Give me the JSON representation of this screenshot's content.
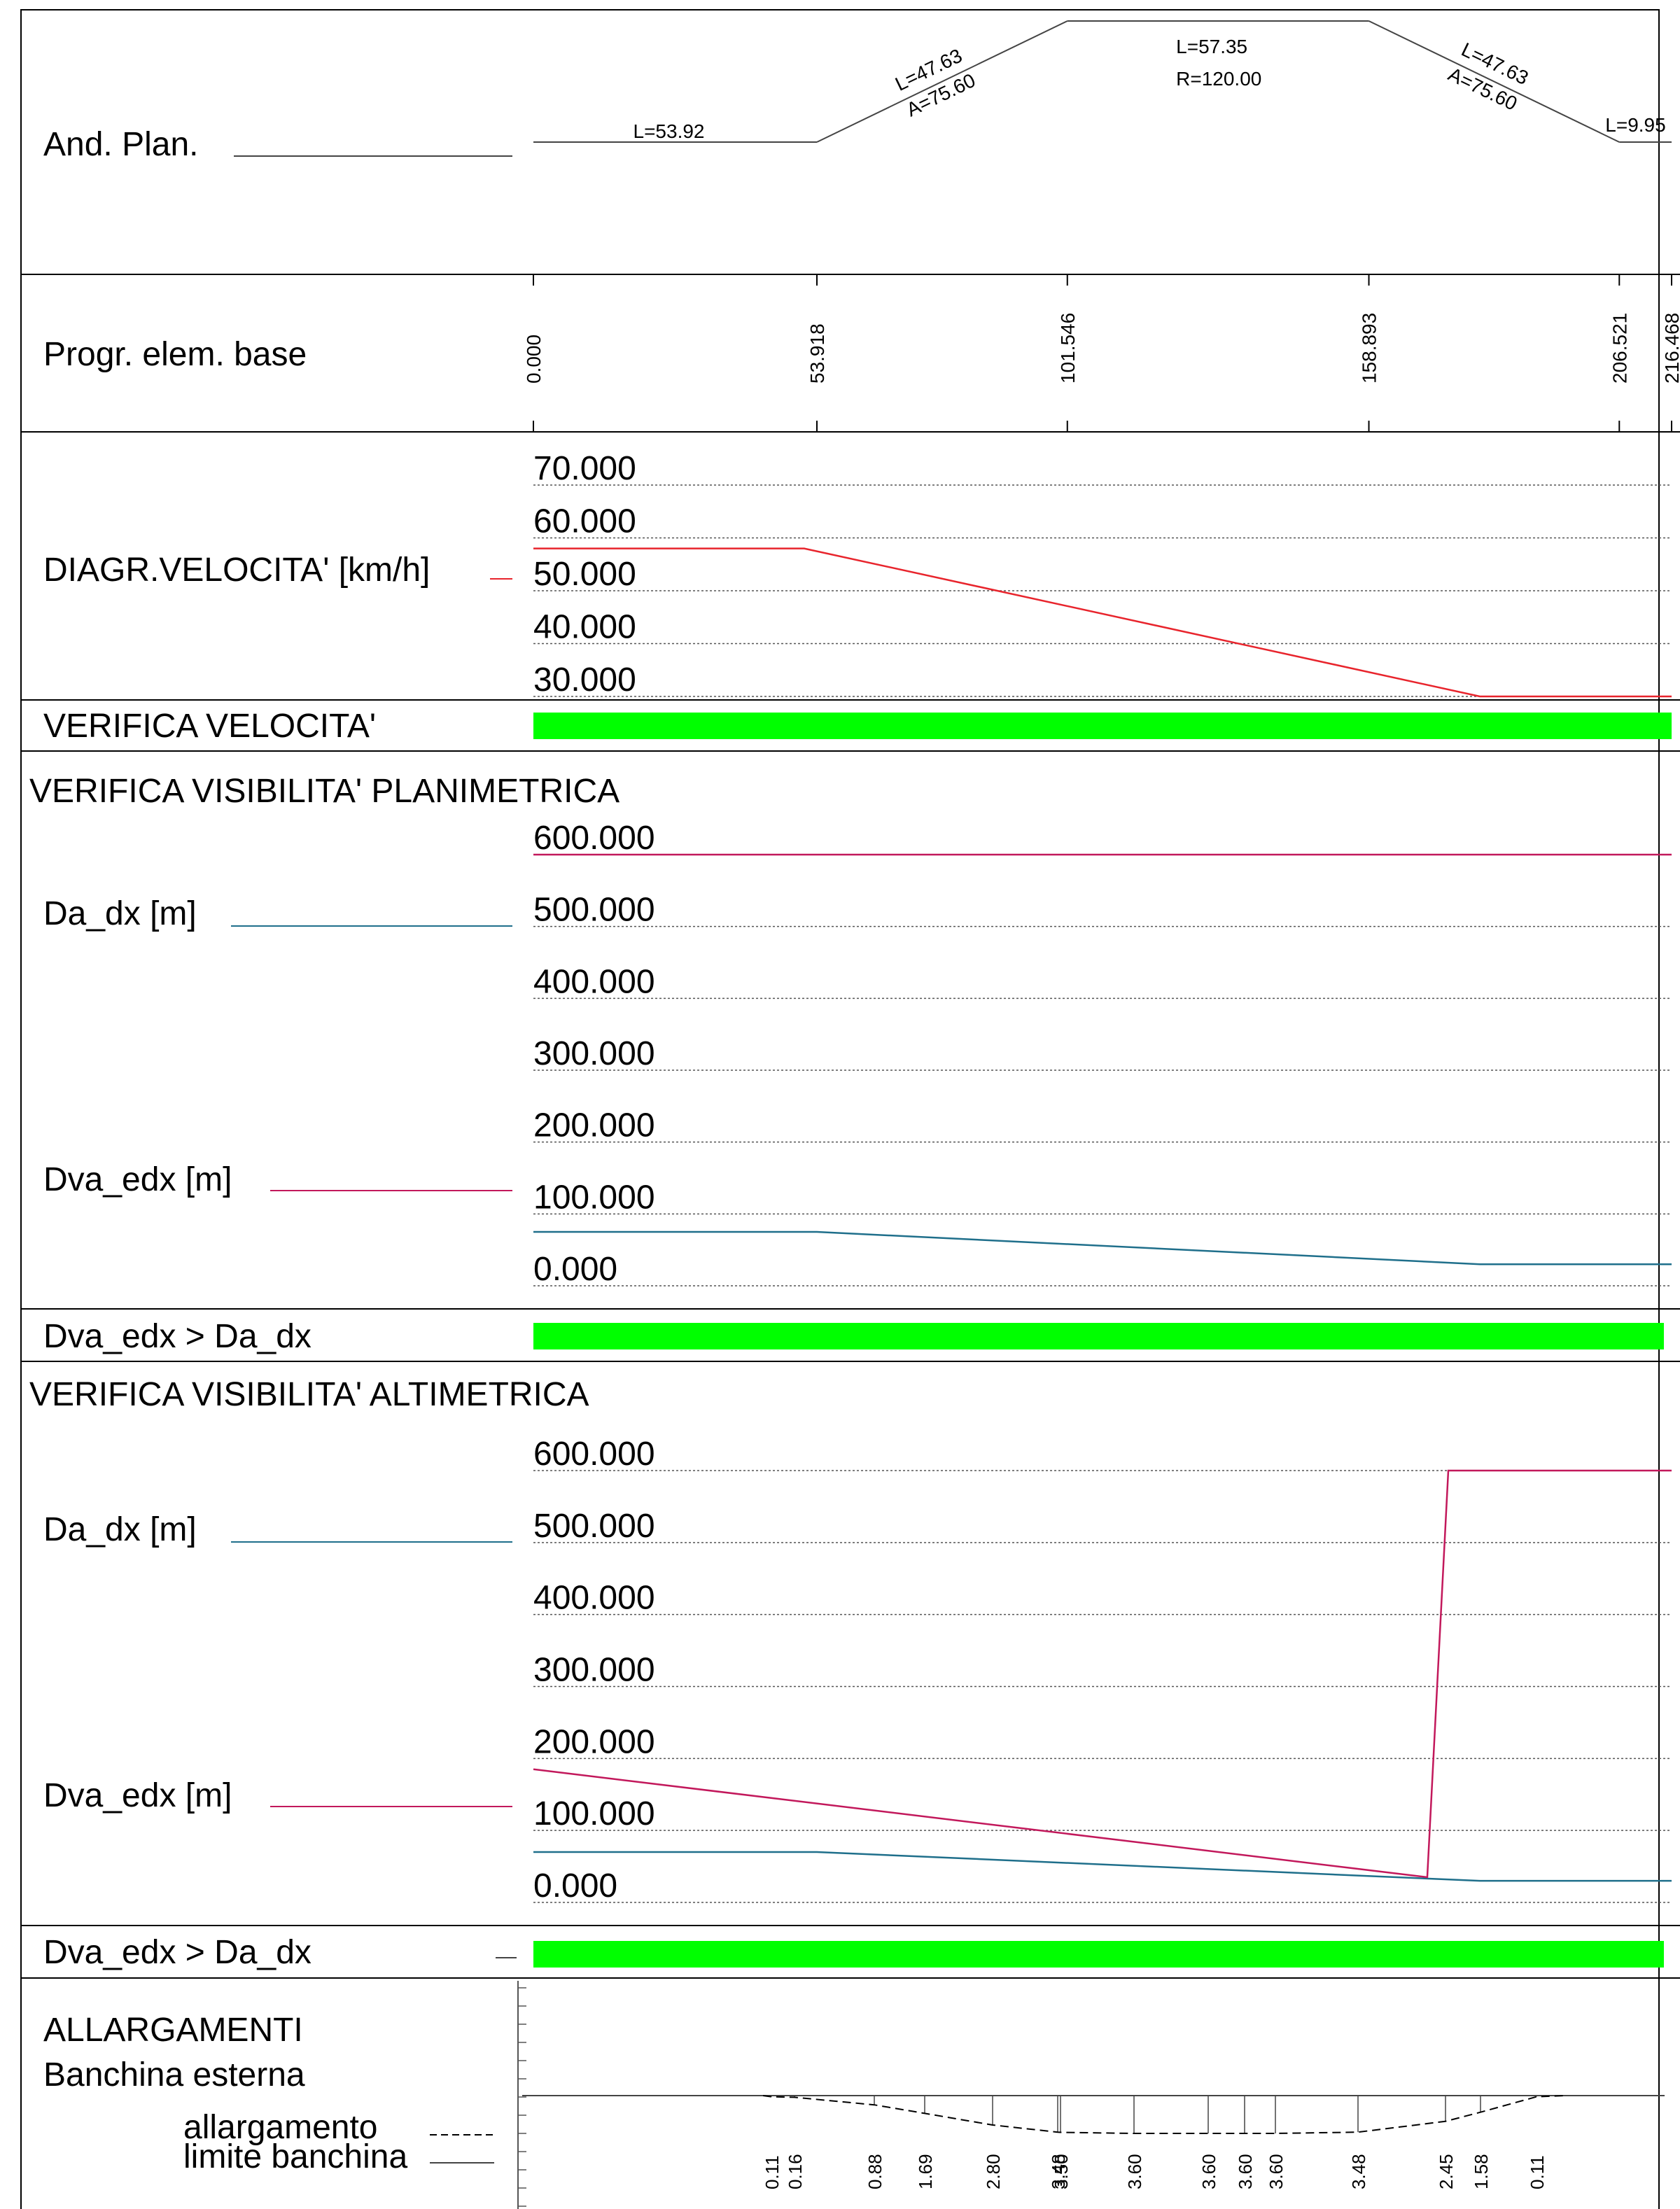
{
  "rows": {
    "plan": {
      "title": "And. Plan."
    },
    "progr": {
      "title": "Progr. elem. base"
    },
    "speed": {
      "title": "DIAGR.VELOCITA' [km/h]"
    },
    "speed_check": {
      "title": "VERIFICA VELOCITA'"
    },
    "plan_vis": {
      "title": "VERIFICA VISIBILITA' PLANIMETRICA",
      "legend_da": "Da_dx [m]",
      "legend_dva": "Dva_edx [m]",
      "check_title": "Dva_edx > Da_dx"
    },
    "alt_vis": {
      "title": "VERIFICA VISIBILITA' ALTIMETRICA",
      "legend_da": "Da_dx [m]",
      "legend_dva": "Dva_edx [m]",
      "check_title": "Dva_edx > Da_dx"
    },
    "widen": {
      "title": "ALLARGAMENTI",
      "subtitle": "Banchina esterna",
      "legend_widen": "allargamento",
      "legend_limit": "limite banchina"
    }
  },
  "colors": {
    "frame": "#000000",
    "speed_line": "#e8242c",
    "da_line": "#1f6f8b",
    "dva_line": "#c2185b",
    "check_ok": "#00ff00",
    "axis_line": "#444444"
  },
  "chart_data": [
    {
      "type": "line",
      "name": "plan-elements",
      "x": [
        0.0,
        53.918,
        101.546,
        158.893,
        206.521,
        216.468
      ],
      "segments": [
        {
          "label": "L=53.92",
          "sub": "",
          "start": 0.0,
          "end": 53.918,
          "level": 0
        },
        {
          "label": "L=47.63",
          "sub": "A=75.60",
          "start": 53.918,
          "end": 101.546,
          "level": 1
        },
        {
          "label": "L=57.35",
          "sub": "R=120.00",
          "start": 101.546,
          "end": 158.893,
          "level": 1
        },
        {
          "label": "L=47.63",
          "sub": "A=75.60",
          "start": 158.893,
          "end": 206.521,
          "level": 0
        },
        {
          "label": "L=9.95",
          "sub": "",
          "start": 206.521,
          "end": 216.468,
          "level": 0
        }
      ],
      "progressive_labels": [
        "0.000",
        "53.918",
        "101.546",
        "158.893",
        "206.521",
        "216.468"
      ],
      "xlim": [
        0,
        216.468
      ]
    },
    {
      "type": "line",
      "name": "speed-diagram",
      "ylabel": "DIAGR.VELOCITA' [km/h]",
      "yticks": [
        "30.000",
        "40.000",
        "50.000",
        "60.000",
        "70.000"
      ],
      "ylim": [
        30,
        70
      ],
      "series": [
        {
          "x": [
            0,
            51.5,
            180,
            216.468
          ],
          "y": [
            58.0,
            58.0,
            30.0,
            30.0
          ]
        }
      ],
      "check": {
        "label": "VERIFICA VELOCITA'",
        "pass_from": 0,
        "pass_to": 216.468
      }
    },
    {
      "type": "line",
      "name": "planimetric-visibility",
      "yticks": [
        "0.000",
        "100.000",
        "200.000",
        "300.000",
        "400.000",
        "500.000",
        "600.000"
      ],
      "ylim": [
        0,
        600
      ],
      "grid": true,
      "series": [
        {
          "name": "Da_dx [m]",
          "x": [
            0,
            53.918,
            180,
            216.468
          ],
          "y": [
            75,
            75,
            30,
            30
          ]
        },
        {
          "name": "Dva_edx [m]",
          "x": [
            0,
            216.468
          ],
          "y": [
            600,
            600
          ]
        }
      ],
      "check": {
        "label": "Dva_edx > Da_dx",
        "pass_from": 0,
        "pass_to": 215
      }
    },
    {
      "type": "line",
      "name": "altimetric-visibility",
      "yticks": [
        "0.000",
        "100.000",
        "200.000",
        "300.000",
        "400.000",
        "500.000",
        "600.000"
      ],
      "ylim": [
        0,
        600
      ],
      "grid": true,
      "series": [
        {
          "name": "Da_dx [m]",
          "x": [
            0,
            53.918,
            180,
            216.468
          ],
          "y": [
            70,
            70,
            30,
            30
          ]
        },
        {
          "name": "Dva_edx [m]",
          "x": [
            0,
            170,
            174,
            216.468
          ],
          "y": [
            185,
            35,
            600,
            600
          ]
        }
      ],
      "check": {
        "label": "Dva_edx > Da_dx",
        "pass_from": 0,
        "pass_to": 215
      }
    },
    {
      "type": "line",
      "name": "widening",
      "x": [
        33.0,
        34.0,
        41.5,
        48.0,
        57.0,
        68.0,
        68.5,
        78.0,
        87.5,
        92.5,
        97.5,
        107.0,
        118.0,
        122.5,
        130.0
      ],
      "values": [
        0.11,
        0.16,
        0.88,
        1.69,
        2.8,
        3.48,
        3.5,
        3.6,
        3.6,
        3.6,
        3.6,
        3.48,
        2.45,
        1.58,
        0.11
      ],
      "labels": [
        "0.11",
        "0.16",
        "0.88",
        "1.69",
        "2.80",
        "3.48",
        "3.50",
        "3.60",
        "3.60",
        "3.60",
        "3.60",
        "3.48",
        "2.45",
        "1.58",
        "0.11"
      ]
    }
  ]
}
